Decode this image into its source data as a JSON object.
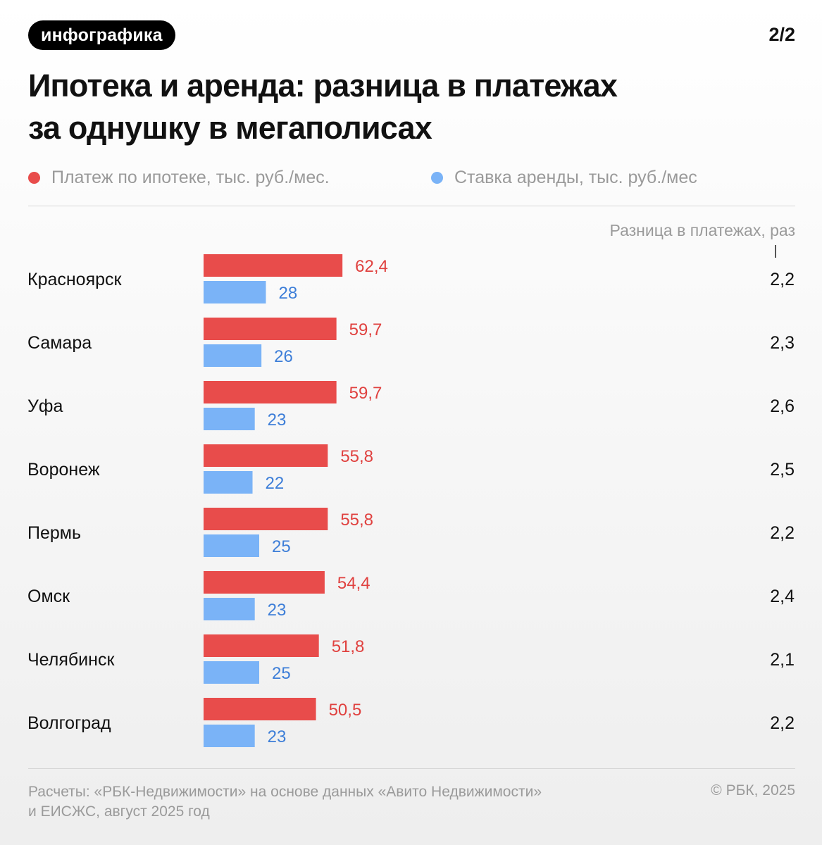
{
  "tag": "инфографика",
  "page_indicator": "2/2",
  "title_line1": "Ипотека и аренда: разница в платежах",
  "title_line2": "за однушку в мегаполисах",
  "colors": {
    "mortgage": "#e84c4b",
    "rent": "#7ab3f7",
    "mortgage_text": "#e0413f",
    "rent_text": "#3d7ed8"
  },
  "chart_data": {
    "type": "bar",
    "orientation": "horizontal",
    "categories": [
      "Красноярск",
      "Самара",
      "Уфа",
      "Воронеж",
      "Пермь",
      "Омск",
      "Челябинск",
      "Волгоград"
    ],
    "series": [
      {
        "name": "Платеж по ипотеке, тыс. руб./мес.",
        "values": [
          62.4,
          59.7,
          59.7,
          55.8,
          55.8,
          54.4,
          51.8,
          50.5
        ],
        "labels": [
          "62,4",
          "59,7",
          "59,7",
          "55,8",
          "55,8",
          "54,4",
          "51,8",
          "50,5"
        ]
      },
      {
        "name": "Ставка аренды, тыс. руб./мес",
        "values": [
          28,
          26,
          23,
          22,
          25,
          23,
          25,
          23
        ],
        "labels": [
          "28",
          "26",
          "23",
          "22",
          "25",
          "23",
          "25",
          "23"
        ]
      }
    ],
    "ratio_header": "Разница в платежах, раз",
    "ratios": [
      "2,2",
      "2,3",
      "2,6",
      "2,5",
      "2,2",
      "2,4",
      "2,1",
      "2,2"
    ],
    "legend_position": "top"
  },
  "footer": {
    "source_line1": "Расчеты: «РБК-Недвижимости» на основе данных «Авито Недвижимости»",
    "source_line2": "и ЕИСЖС, август 2025 год",
    "copyright": "© РБК, 2025"
  }
}
